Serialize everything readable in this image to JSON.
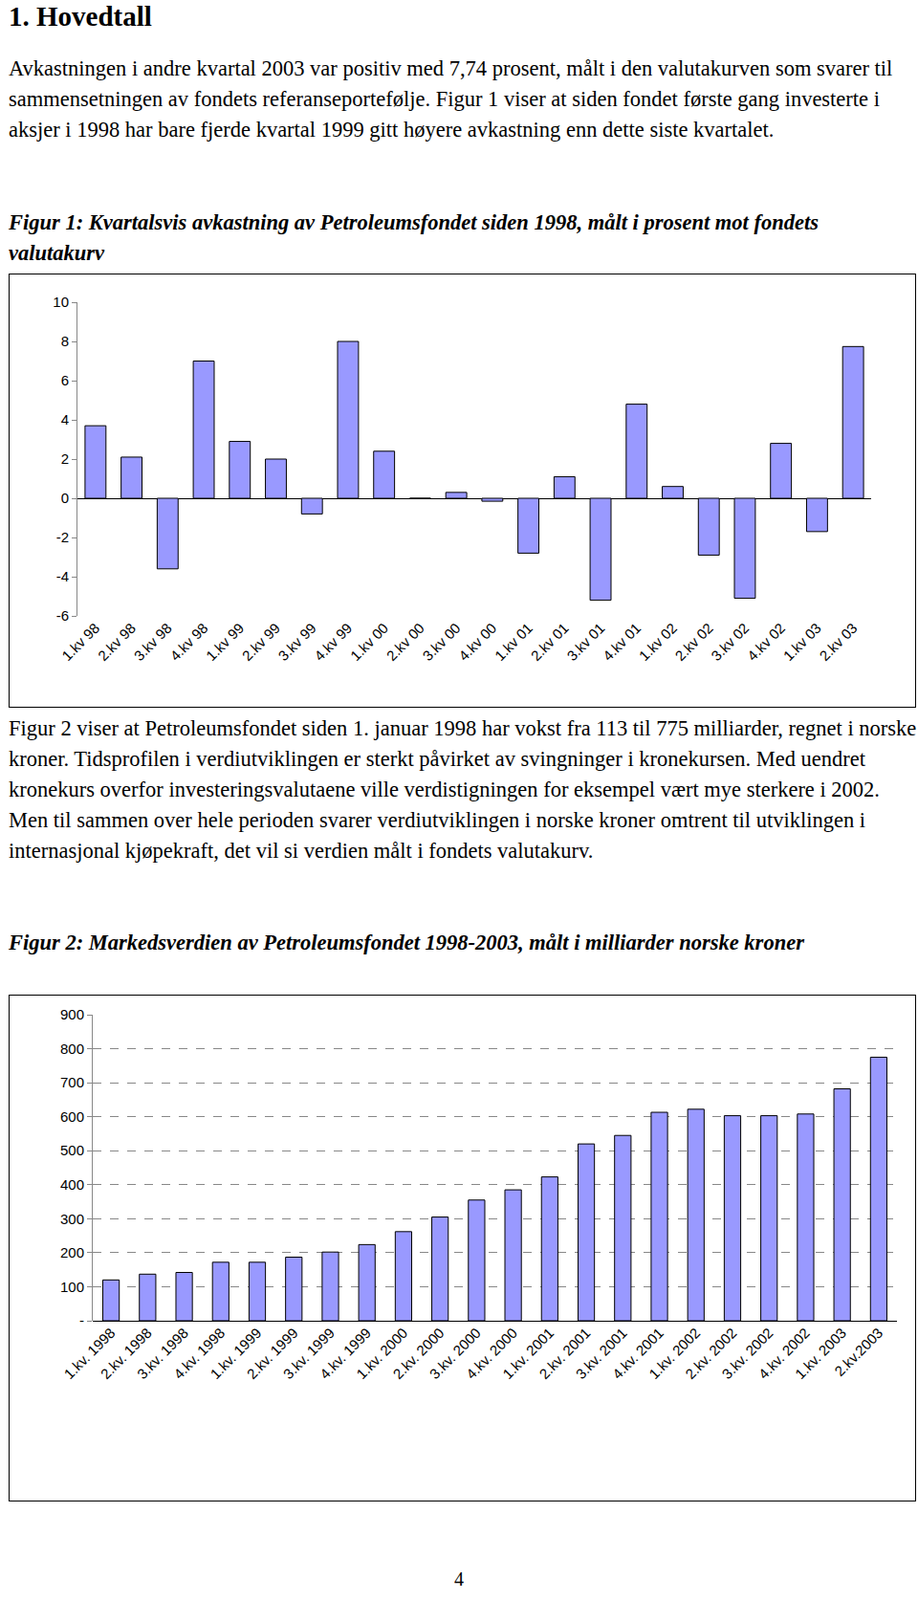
{
  "heading": "1. Hovedtall",
  "paragraphs": [
    "Avkastningen i andre kvartal 2003 var positiv med 7,74 prosent, målt i den valutakurven som svarer til sammensetningen av fondets referanseportefølje. Figur 1 viser at siden fondet første gang investerte i aksjer i 1998 har bare fjerde kvartal 1999 gitt høyere avkastning enn dette siste kvartalet.",
    "Figur 2 viser at Petroleumsfondet siden 1. januar 1998 har vokst fra 113 til 775 milliarder, regnet i norske kroner. Tidsprofilen i verdiutviklingen er sterkt påvirket av svingninger i kronekursen. Med uendret kronekurs overfor investeringsvalutaene ville verdistigningen for eksempel vært mye sterkere i 2002. Men til sammen over hele perioden svarer verdiutviklingen i norske kroner omtrent til utviklingen i internasjonal kjøpekraft, det vil si verdien målt i fondets valutakurv."
  ],
  "chart_data": [
    {
      "type": "bar",
      "title": "Figur 1: Kvartalsvis avkastning av Petroleumsfondet siden 1998, målt i prosent mot fondets valutakurv",
      "categories": [
        "1.kv 98",
        "2.kv 98",
        "3.kv 98",
        "4.kv 98",
        "1.kv 99",
        "2.kv 99",
        "3.kv 99",
        "4.kv 99",
        "1.kv 00",
        "2.kv 00",
        "3.kv 00",
        "4.kv 00",
        "1.kv 01",
        "2.kv 01",
        "3.kv 01",
        "4.kv 01",
        "1.kv 02",
        "2.kv 02",
        "3.kv 02",
        "4.kv 02",
        "1.kv 03",
        "2.kv 03"
      ],
      "values": [
        3.7,
        2.1,
        -3.6,
        7.0,
        2.9,
        2.0,
        -0.8,
        8.0,
        2.4,
        0.0,
        0.3,
        -0.15,
        -2.8,
        1.1,
        -5.2,
        4.8,
        0.6,
        -2.9,
        -5.1,
        2.8,
        -1.7,
        7.74
      ],
      "color": "#9999ff",
      "ylim": [
        -6,
        10
      ],
      "yticks": [
        -6,
        -4,
        -2,
        0,
        2,
        4,
        6,
        8,
        10
      ],
      "grid": false
    },
    {
      "type": "bar",
      "title": "Figur 2: Markedsverdien av Petroleumsfondet 1998-2003, målt i milliarder norske kroner",
      "categories": [
        "1.kv. 1998",
        "2.kv. 1998",
        "3.kv. 1998",
        "4.kv. 1998",
        "1.kv. 1999",
        "2.kv. 1999",
        "3.kv. 1999",
        "4.kv. 1999",
        "1.kv. 2000",
        "2.kv. 2000",
        "3.kv. 2000",
        "4.kv. 2000",
        "1.kv. 2001",
        "2.kv. 2001",
        "3.kv. 2001",
        "4.kv. 2001",
        "1.kv. 2002",
        "2.kv. 2002",
        "3.kv. 2002",
        "4.kv. 2002",
        "1.kv. 2003",
        "2.kv.2003"
      ],
      "values": [
        120,
        137,
        142,
        172,
        172,
        187,
        202,
        224,
        262,
        305,
        355,
        385,
        423,
        520,
        545,
        613,
        622,
        603,
        603,
        608,
        682,
        775
      ],
      "color": "#9999ff",
      "ylim": [
        0,
        900
      ],
      "yticks": [
        {
          "value": 0,
          "label": "-"
        },
        100,
        200,
        300,
        400,
        500,
        600,
        700,
        800,
        900
      ],
      "grid": true
    }
  ],
  "page_number": "4"
}
